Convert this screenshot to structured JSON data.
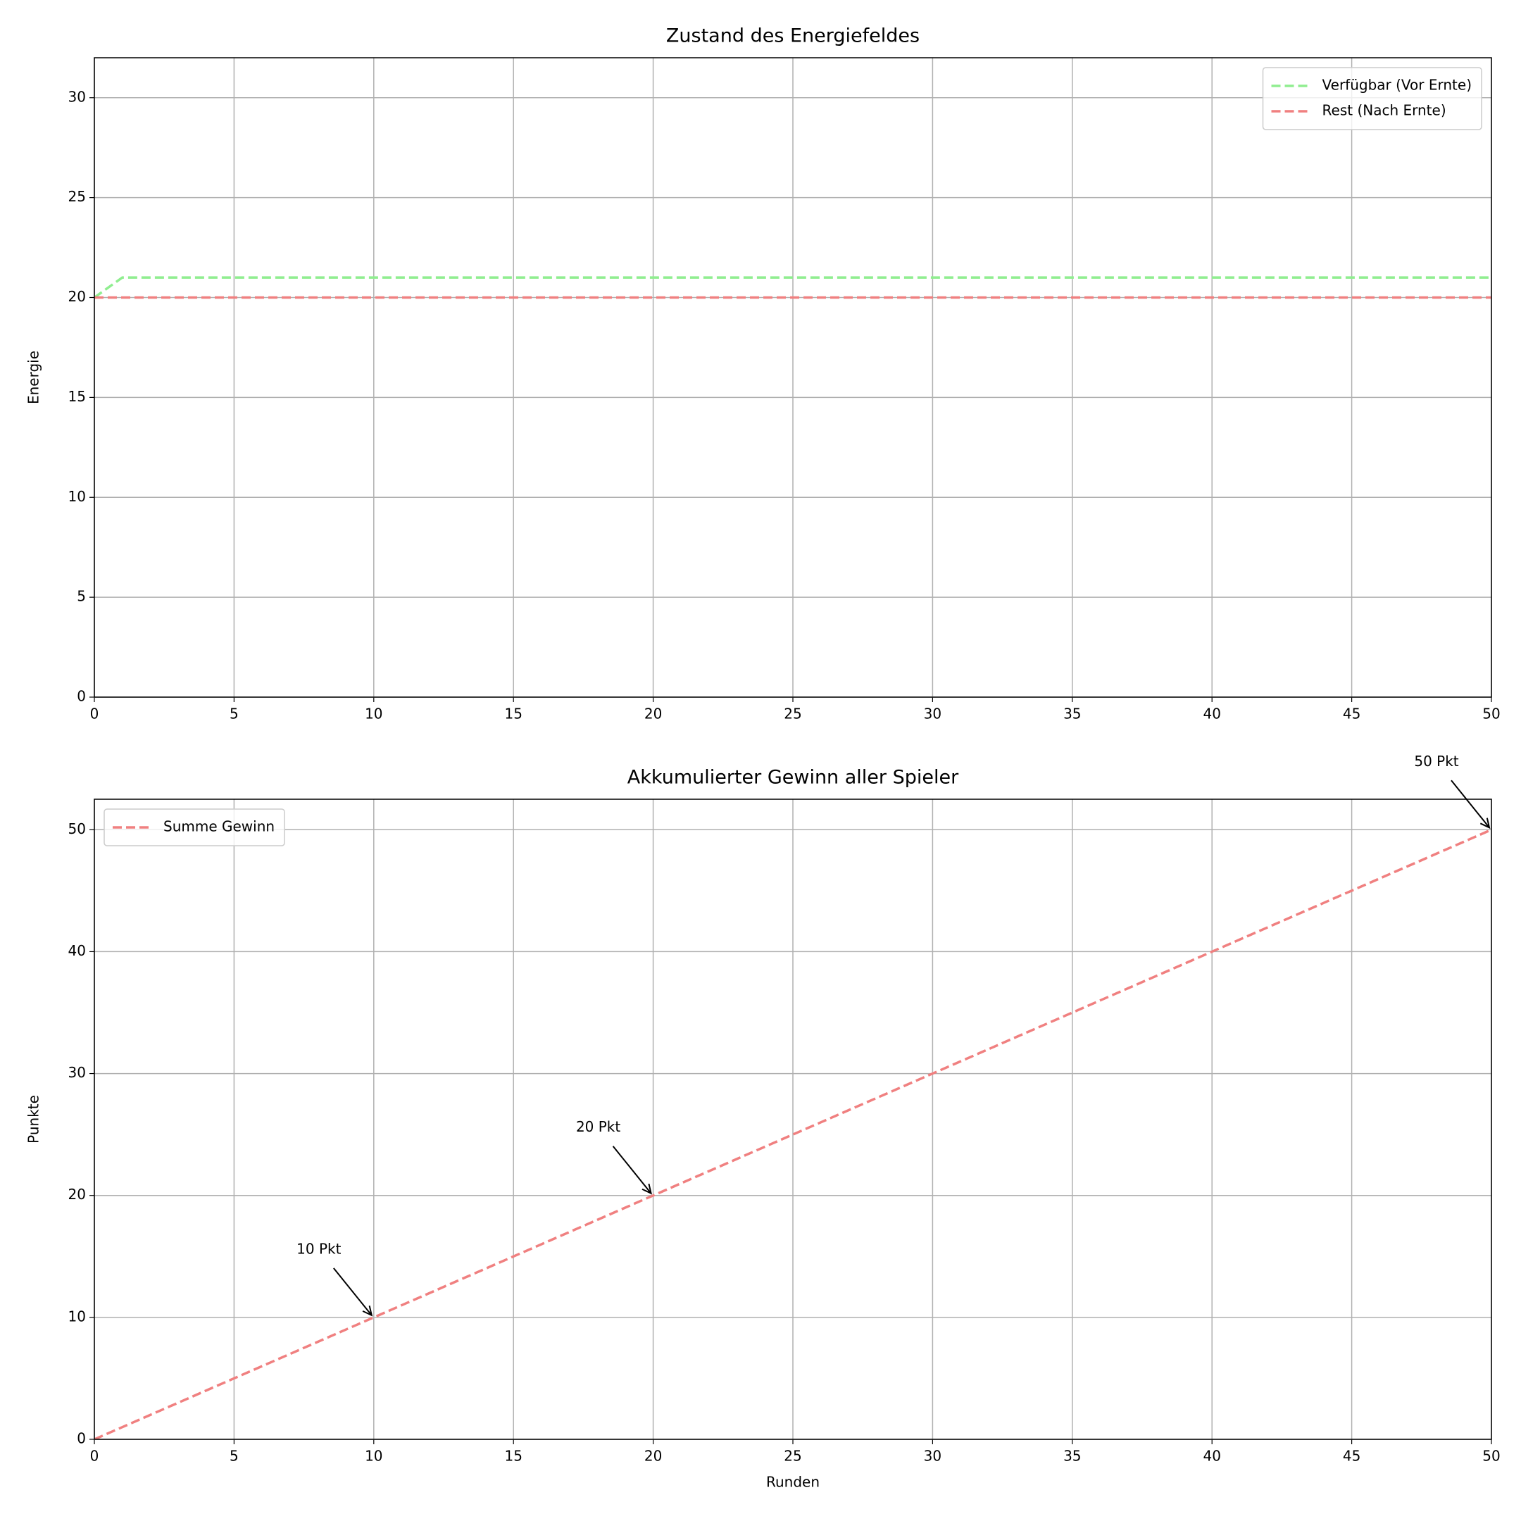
{
  "chart_data": [
    {
      "type": "line",
      "title": "Zustand des Energiefeldes",
      "ylabel": "Energie",
      "x": [
        0,
        1,
        2,
        3,
        4,
        5,
        6,
        7,
        8,
        9,
        10,
        11,
        12,
        13,
        14,
        15,
        16,
        17,
        18,
        19,
        20,
        21,
        22,
        23,
        24,
        25,
        26,
        27,
        28,
        29,
        30,
        31,
        32,
        33,
        34,
        35,
        36,
        37,
        38,
        39,
        40,
        41,
        42,
        43,
        44,
        45,
        46,
        47,
        48,
        49,
        50
      ],
      "series": [
        {
          "name": "Verfügbar (Vor Ernte)",
          "color": "#90ee90",
          "dashed": true,
          "values": [
            20,
            21,
            21,
            21,
            21,
            21,
            21,
            21,
            21,
            21,
            21,
            21,
            21,
            21,
            21,
            21,
            21,
            21,
            21,
            21,
            21,
            21,
            21,
            21,
            21,
            21,
            21,
            21,
            21,
            21,
            21,
            21,
            21,
            21,
            21,
            21,
            21,
            21,
            21,
            21,
            21,
            21,
            21,
            21,
            21,
            21,
            21,
            21,
            21,
            21,
            21
          ]
        },
        {
          "name": "Rest (Nach Ernte)",
          "color": "#f08080",
          "dashed": true,
          "values": [
            20,
            20,
            20,
            20,
            20,
            20,
            20,
            20,
            20,
            20,
            20,
            20,
            20,
            20,
            20,
            20,
            20,
            20,
            20,
            20,
            20,
            20,
            20,
            20,
            20,
            20,
            20,
            20,
            20,
            20,
            20,
            20,
            20,
            20,
            20,
            20,
            20,
            20,
            20,
            20,
            20,
            20,
            20,
            20,
            20,
            20,
            20,
            20,
            20,
            20,
            20
          ]
        }
      ],
      "xlim": [
        0,
        50
      ],
      "xticks": [
        0,
        5,
        10,
        15,
        20,
        25,
        30,
        35,
        40,
        45,
        50
      ],
      "ylim": [
        0,
        32
      ],
      "yticks": [
        0,
        5,
        10,
        15,
        20,
        25,
        30
      ],
      "grid": true,
      "legend": "upper right"
    },
    {
      "type": "line",
      "title": "Akkumulierter Gewinn aller Spieler",
      "xlabel": "Runden",
      "ylabel": "Punkte",
      "x": [
        0,
        1,
        2,
        3,
        4,
        5,
        6,
        7,
        8,
        9,
        10,
        11,
        12,
        13,
        14,
        15,
        16,
        17,
        18,
        19,
        20,
        21,
        22,
        23,
        24,
        25,
        26,
        27,
        28,
        29,
        30,
        31,
        32,
        33,
        34,
        35,
        36,
        37,
        38,
        39,
        40,
        41,
        42,
        43,
        44,
        45,
        46,
        47,
        48,
        49,
        50
      ],
      "series": [
        {
          "name": "Summe Gewinn",
          "color": "#f08080",
          "dashed": true,
          "values": [
            0,
            1,
            2,
            3,
            4,
            5,
            6,
            7,
            8,
            9,
            10,
            11,
            12,
            13,
            14,
            15,
            16,
            17,
            18,
            19,
            20,
            21,
            22,
            23,
            24,
            25,
            26,
            27,
            28,
            29,
            30,
            31,
            32,
            33,
            34,
            35,
            36,
            37,
            38,
            39,
            40,
            41,
            42,
            43,
            44,
            45,
            46,
            47,
            48,
            49,
            50
          ]
        }
      ],
      "annotations": [
        {
          "text": "10 Pkt",
          "x": 10,
          "y": 10
        },
        {
          "text": "20 Pkt",
          "x": 20,
          "y": 20
        },
        {
          "text": "50 Pkt",
          "x": 50,
          "y": 50
        }
      ],
      "xlim": [
        0,
        50
      ],
      "xticks": [
        0,
        5,
        10,
        15,
        20,
        25,
        30,
        35,
        40,
        45,
        50
      ],
      "ylim": [
        0,
        52.5
      ],
      "yticks": [
        0,
        10,
        20,
        30,
        40,
        50
      ],
      "grid": true,
      "legend": "upper left"
    }
  ]
}
